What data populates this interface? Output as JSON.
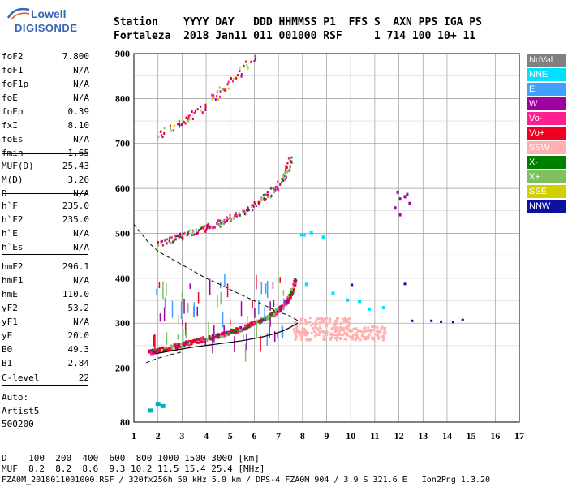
{
  "logo": {
    "top": "Lowell",
    "bottom": "DIGISONDE"
  },
  "header": {
    "row1": "Station    YYYY DAY   DDD HHMMSS P1  FFS S  AXN PPS IGA PS",
    "row2": "Fortaleza  2018 Jan11 011 001000 RSF     1 714 100 10+ 11"
  },
  "params_a": [
    {
      "name": "foF2",
      "value": "7.800"
    },
    {
      "name": "foF1",
      "value": "N/A"
    },
    {
      "name": "foF1p",
      "value": "N/A"
    },
    {
      "name": "foE",
      "value": "N/A"
    },
    {
      "name": "foEp",
      "value": "0.39"
    },
    {
      "name": "fxI",
      "value": "8.10"
    },
    {
      "name": "foEs",
      "value": "N/A"
    },
    {
      "name": "fmin",
      "value": "1.65"
    }
  ],
  "params_b": [
    {
      "name": "MUF(D)",
      "value": "25.43"
    },
    {
      "name": "M(D)",
      "value": "3.26"
    },
    {
      "name": "D",
      "value": "N/A"
    }
  ],
  "params_c": [
    {
      "name": "h`F",
      "value": "235.0"
    },
    {
      "name": "h`F2",
      "value": "235.0"
    },
    {
      "name": "h`E",
      "value": "N/A"
    },
    {
      "name": "h`Es",
      "value": "N/A"
    }
  ],
  "params_d": [
    {
      "name": "hmF2",
      "value": "296.1"
    },
    {
      "name": "hmF1",
      "value": "N/A"
    },
    {
      "name": "hmE",
      "value": "110.0"
    },
    {
      "name": "yF2",
      "value": "53.2"
    },
    {
      "name": "yF1",
      "value": "N/A"
    },
    {
      "name": "yE",
      "value": "20.0"
    },
    {
      "name": "B0",
      "value": "49.3"
    },
    {
      "name": "B1",
      "value": "2.84"
    }
  ],
  "params_e": [
    {
      "name": "C-level",
      "value": "22"
    }
  ],
  "autoscale": {
    "line1": "Auto:",
    "line2": "Artist5",
    "line3": "500200"
  },
  "legend": [
    {
      "label": "NoVal",
      "color": "#808080"
    },
    {
      "label": "NNE",
      "color": "#00e0ff"
    },
    {
      "label": "E",
      "color": "#3fa0ff"
    },
    {
      "label": "W",
      "color": "#a000a0"
    },
    {
      "label": "Vo-",
      "color": "#ff2090"
    },
    {
      "label": "Vo+",
      "color": "#f00020"
    },
    {
      "label": "SSW",
      "color": "#ffb0b0"
    },
    {
      "label": "X-",
      "color": "#008000"
    },
    {
      "label": "X+",
      "color": "#80c060"
    },
    {
      "label": "SSE",
      "color": "#d0d000"
    },
    {
      "label": "NNW",
      "color": "#1010a0"
    }
  ],
  "footer": {
    "row1": "D    100  200  400  600  800 1000 1500 3000 [km]",
    "row2": "MUF  8.2  8.2  8.6  9.3 10.2 11.5 15.4 25.4 [MHz]",
    "row3": "FZA0M_2018011001000.RSF / 320fx256h 50 kHz 5.0 km / DPS-4 FZA0M 904 / 3.9 S 321.6 E   Ion2Png 1.3.20"
  },
  "chart_data": {
    "type": "scatter",
    "title": "",
    "xlabel": "",
    "ylabel": "",
    "xlim": [
      1,
      17
    ],
    "ylim": [
      80,
      900
    ],
    "x_ticks": [
      1,
      2,
      3,
      4,
      5,
      6,
      7,
      8,
      9,
      10,
      11,
      12,
      13,
      14,
      15,
      16,
      17
    ],
    "y_ticks": [
      80,
      200,
      300,
      400,
      500,
      600,
      700,
      800,
      900
    ],
    "grid": true,
    "profile_curve": {
      "x": [
        1.9,
        2.5,
        3.5,
        4.5,
        5.5,
        6.3,
        6.8,
        7.2,
        7.5,
        7.7,
        7.8
      ],
      "y": [
        232,
        238,
        247,
        254,
        261,
        269,
        276,
        283,
        291,
        297,
        300
      ]
    },
    "dashed_curve": {
      "x": [
        1.0,
        1.3,
        1.6,
        2.0,
        2.5,
        3.0,
        3.5,
        4.0,
        4.5,
        5.0,
        5.5,
        6.0,
        6.5,
        7.0,
        7.4,
        7.6,
        7.8
      ],
      "y": [
        520,
        500,
        480,
        460,
        445,
        430,
        415,
        400,
        388,
        375,
        362,
        350,
        338,
        325,
        318,
        312,
        306
      ]
    },
    "lower_dashed": {
      "x": [
        1.5,
        2.0,
        2.5,
        3.0
      ],
      "y": [
        212,
        222,
        230,
        236
      ]
    },
    "trace_o": {
      "x": [
        1.6,
        2.0,
        2.5,
        3.0,
        3.5,
        4.0,
        4.5,
        5.0,
        5.5,
        6.0,
        6.5,
        7.0,
        7.3,
        7.5,
        7.7
      ],
      "y": [
        238,
        242,
        248,
        255,
        262,
        268,
        275,
        283,
        292,
        302,
        315,
        333,
        350,
        370,
        400
      ]
    },
    "trace_second": {
      "x": [
        2.0,
        2.5,
        3.0,
        3.5,
        4.0,
        4.5,
        5.0,
        5.5,
        6.0,
        6.5,
        7.0,
        7.3,
        7.5
      ],
      "y": [
        480,
        488,
        496,
        505,
        515,
        525,
        537,
        550,
        565,
        585,
        610,
        640,
        670
      ]
    },
    "trace_third": {
      "x": [
        2.0,
        2.5,
        3.0,
        3.5,
        4.0,
        4.5,
        5.0,
        5.5,
        6.0
      ],
      "y": [
        720,
        735,
        752,
        768,
        790,
        815,
        840,
        870,
        895
      ]
    },
    "ssw_region": {
      "x": [
        7.6,
        11.5
      ],
      "y": [
        265,
        315
      ]
    },
    "cyan_points": {
      "x": [
        8.0,
        8.3,
        8.8,
        9.2,
        9.8,
        10.3,
        10.7,
        11.3,
        8.1,
        7.9
      ],
      "y": [
        500,
        505,
        495,
        370,
        355,
        352,
        335,
        338,
        390,
        500
      ]
    },
    "purple_cluster": {
      "x": [
        11.8,
        12.0,
        12.2,
        12.4,
        12.0,
        11.9,
        12.3
      ],
      "y": [
        560,
        580,
        585,
        570,
        545,
        595,
        590
      ]
    },
    "nnw_points": {
      "x": [
        12.5,
        13.3,
        13.7,
        14.2,
        14.6,
        10.0,
        12.2
      ],
      "y": [
        308,
        308,
        306,
        305,
        310,
        388,
        390
      ]
    },
    "low_cluster": {
      "x": [
        1.6,
        1.9,
        2.1
      ],
      "y": [
        110,
        125,
        120
      ]
    }
  }
}
